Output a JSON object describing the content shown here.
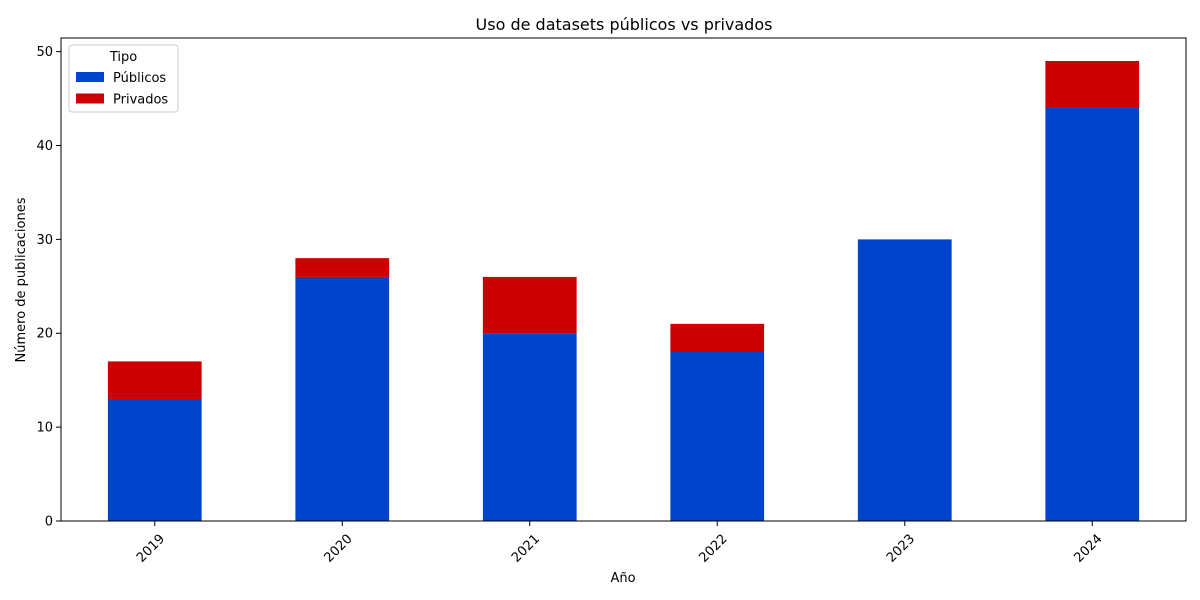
{
  "chart_data": {
    "type": "bar",
    "stacked": true,
    "title": "Uso de datasets públicos vs privados",
    "xlabel": "Año",
    "ylabel": "Número de publicaciones",
    "categories": [
      "2019",
      "2020",
      "2021",
      "2022",
      "2023",
      "2024"
    ],
    "series": [
      {
        "name": "Públicos",
        "color": "#0044cc",
        "values": [
          13,
          26,
          20,
          18,
          30,
          44
        ]
      },
      {
        "name": "Privados",
        "color": "#cc0000",
        "values": [
          4,
          2,
          6,
          3,
          0,
          5
        ]
      }
    ],
    "ylim": [
      0,
      51.45
    ],
    "yticks": [
      0,
      10,
      20,
      30,
      40,
      50
    ],
    "xtick_rotation": 45,
    "legend": {
      "title": "Tipo",
      "position": "top-left"
    },
    "grid": false
  }
}
